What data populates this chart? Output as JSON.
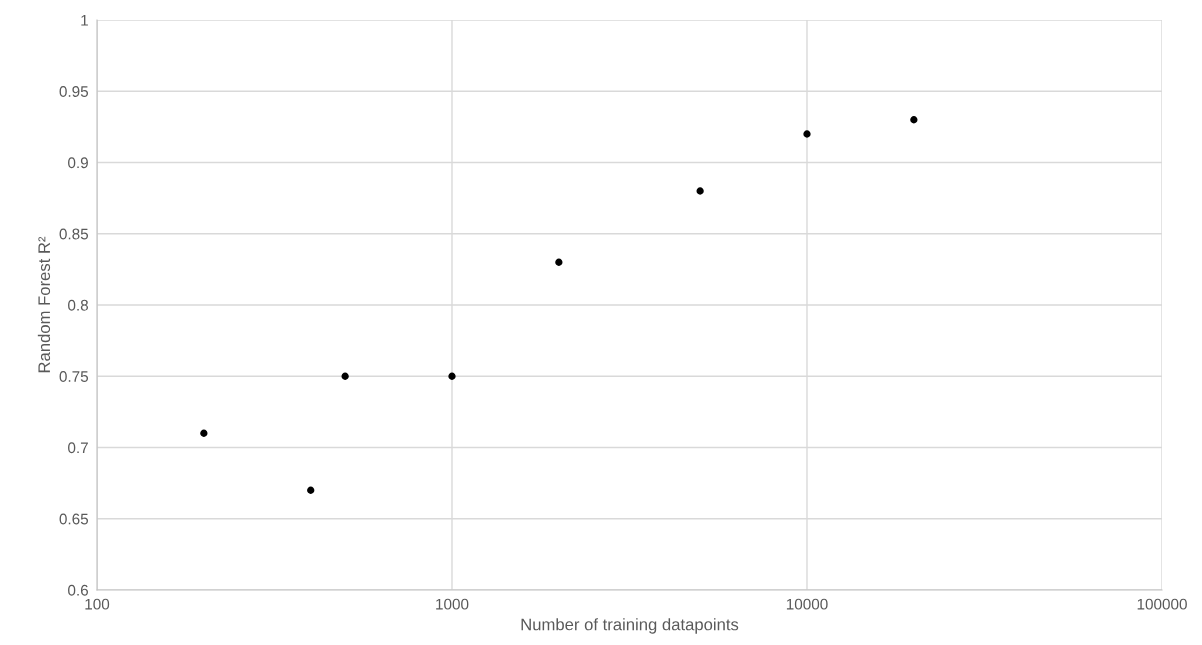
{
  "chart_data": {
    "type": "scatter",
    "xlabel": "Number of training datapoints",
    "ylabel": "Random Forest R²",
    "x": [
      200,
      400,
      500,
      1000,
      2000,
      5000,
      10000,
      20000
    ],
    "series": [
      {
        "color": "#000000",
        "values": [
          0.71,
          0.67,
          0.75,
          0.75,
          0.83,
          0.88,
          0.92,
          0.93
        ]
      }
    ],
    "log": "x",
    "xlim": [
      100,
      100000
    ],
    "xticks": [
      100,
      1000,
      10000,
      100000
    ],
    "ylim": [
      0.6,
      1
    ],
    "yticks": [
      0.6,
      0.65,
      0.7,
      0.75,
      0.8,
      0.85,
      0.9,
      0.95,
      1
    ],
    "grid": true,
    "marker": "circle",
    "legend": false
  }
}
